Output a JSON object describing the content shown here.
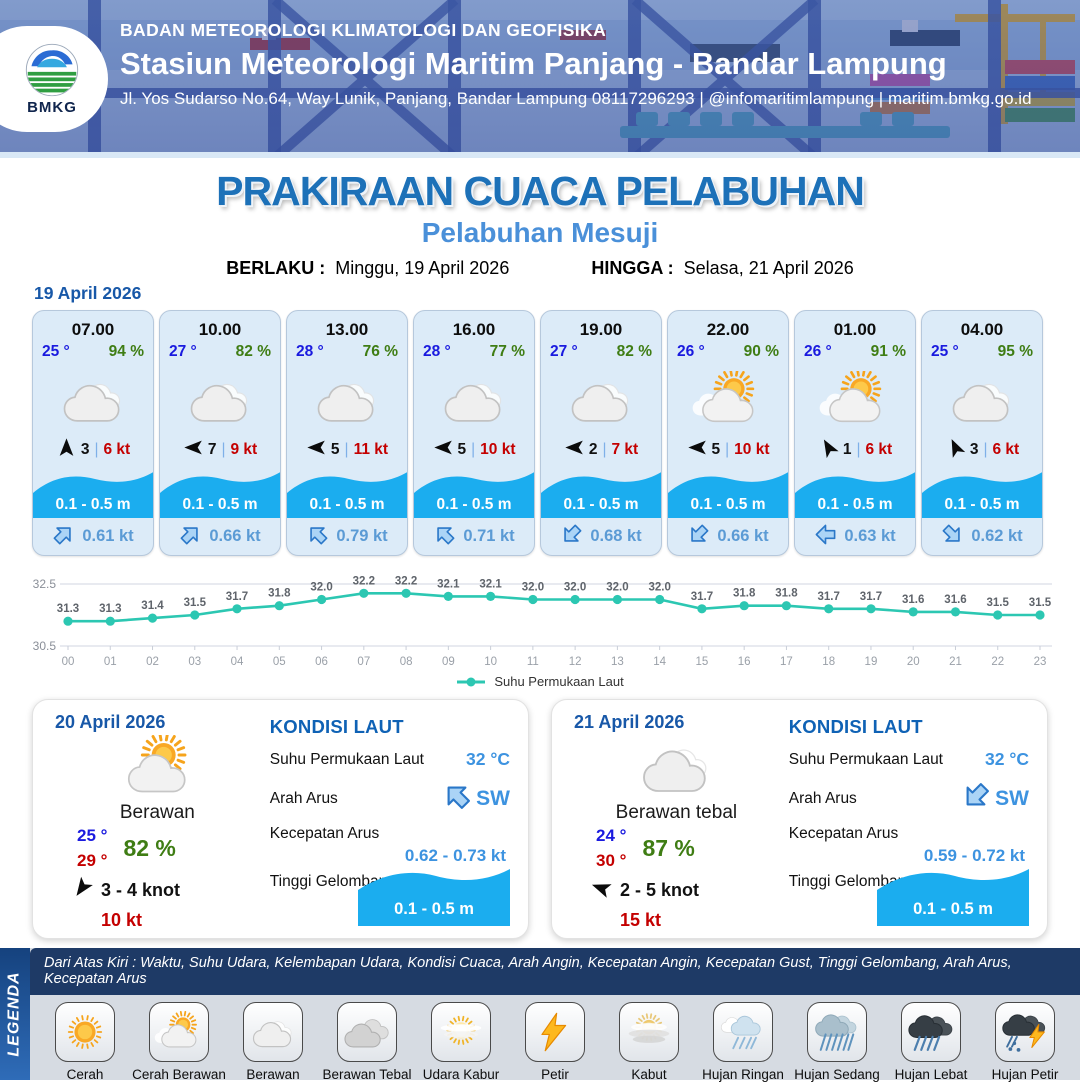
{
  "header": {
    "logo_text": "BMKG",
    "org": "BADAN METEOROLOGI KLIMATOLOGI DAN GEOFISIKA",
    "station": "Stasiun Meteorologi Maritim Panjang - Bandar Lampung",
    "address": "Jl. Yos Sudarso No.64, Way Lunik, Panjang, Bandar Lampung 08117296293 | @infomaritimlampung | maritim.bmkg.go.id"
  },
  "title": {
    "main": "PRAKIRAAN CUACA PELABUHAN",
    "sub": "Pelabuhan Mesuji",
    "berlaku_label": "BERLAKU :",
    "berlaku_value": "Minggu, 19 April 2026",
    "hingga_label": "HINGGA :",
    "hingga_value": "Selasa, 21 April 2026"
  },
  "forecast": {
    "date": "19 April 2026",
    "separator": "|",
    "cards": [
      {
        "time": "07.00",
        "temp": "25 °",
        "humidity": "94 %",
        "icon": "berawan",
        "wind_dir_deg": 0,
        "wind": "3",
        "gust": "6 kt",
        "wave": "0.1 - 0.5 m",
        "current_dir_deg": 45,
        "current": "0.61 kt"
      },
      {
        "time": "10.00",
        "temp": "27 °",
        "humidity": "82 %",
        "icon": "berawan",
        "wind_dir_deg": -90,
        "wind": "7",
        "gust": "9 kt",
        "wave": "0.1 - 0.5 m",
        "current_dir_deg": 45,
        "current": "0.66 kt"
      },
      {
        "time": "13.00",
        "temp": "28 °",
        "humidity": "76 %",
        "icon": "berawan",
        "wind_dir_deg": -90,
        "wind": "5",
        "gust": "11 kt",
        "wave": "0.1 - 0.5 m",
        "current_dir_deg": -45,
        "current": "0.79 kt"
      },
      {
        "time": "16.00",
        "temp": "28 °",
        "humidity": "77 %",
        "icon": "berawan",
        "wind_dir_deg": -90,
        "wind": "5",
        "gust": "10 kt",
        "wave": "0.1 - 0.5 m",
        "current_dir_deg": -45,
        "current": "0.71 kt"
      },
      {
        "time": "19.00",
        "temp": "27 °",
        "humidity": "82 %",
        "icon": "berawan",
        "wind_dir_deg": -90,
        "wind": "2",
        "gust": "7 kt",
        "wave": "0.1 - 0.5 m",
        "current_dir_deg": -135,
        "current": "0.68 kt"
      },
      {
        "time": "22.00",
        "temp": "26 °",
        "humidity": "90 %",
        "icon": "cerah-berawan",
        "wind_dir_deg": -90,
        "wind": "5",
        "gust": "10 kt",
        "wave": "0.1 - 0.5 m",
        "current_dir_deg": -135,
        "current": "0.66 kt"
      },
      {
        "time": "01.00",
        "temp": "26 °",
        "humidity": "91 %",
        "icon": "cerah-berawan",
        "wind_dir_deg": -30,
        "wind": "1",
        "gust": "6 kt",
        "wave": "0.1 - 0.5 m",
        "current_dir_deg": -90,
        "current": "0.63 kt"
      },
      {
        "time": "04.00",
        "temp": "25 °",
        "humidity": "95 %",
        "icon": "berawan",
        "wind_dir_deg": -25,
        "wind": "3",
        "gust": "6 kt",
        "wave": "0.1 - 0.5 m",
        "current_dir_deg": 135,
        "current": "0.62 kt"
      }
    ]
  },
  "chart_data": {
    "type": "line",
    "x": [
      "00",
      "01",
      "02",
      "03",
      "04",
      "05",
      "06",
      "07",
      "08",
      "09",
      "10",
      "11",
      "12",
      "13",
      "14",
      "15",
      "16",
      "17",
      "18",
      "19",
      "20",
      "21",
      "22",
      "23"
    ],
    "series": [
      {
        "name": "Suhu Permukaan Laut",
        "values": [
          31.3,
          31.3,
          31.4,
          31.5,
          31.7,
          31.8,
          32.0,
          32.2,
          32.2,
          32.1,
          32.1,
          32.0,
          32.0,
          32.0,
          32.0,
          31.7,
          31.8,
          31.8,
          31.7,
          31.7,
          31.6,
          31.6,
          31.5,
          31.5
        ]
      }
    ],
    "ylim": [
      30.5,
      32.5
    ],
    "yticks": [
      32.5,
      30.5
    ],
    "grid": true,
    "point_labels": true,
    "legend_position": "bottom",
    "legend_label": "Suhu Permukaan Laut",
    "color": "#2cc7b2"
  },
  "kondisi_labels": {
    "heading": "KONDISI LAUT",
    "sst": "Suhu Permukaan Laut",
    "arah": "Arah Arus",
    "kec": "Kecepatan Arus",
    "gel": "Tinggi Gelombang"
  },
  "day_cards": [
    {
      "date": "20 April 2026",
      "icon": "cerah-berawan",
      "condition": "Berawan",
      "temp_min": "25 °",
      "temp_max": "29 °",
      "humidity": "82 %",
      "wind_dir_deg": 215,
      "wind": "3 - 4 knot",
      "gust": "10 kt",
      "sea": {
        "sst": "32 °C",
        "arah": "SW",
        "arah_deg": -45,
        "kec": "0.62 - 0.73 kt",
        "gel": "0.1 - 0.5 m"
      }
    },
    {
      "date": "21 April 2026",
      "icon": "berawan",
      "condition": "Berawan tebal",
      "temp_min": "24 °",
      "temp_max": "30 °",
      "humidity": "87 %",
      "wind_dir_deg": -70,
      "wind": "2 - 5 knot",
      "gust": "15 kt",
      "sea": {
        "sst": "32 °C",
        "arah": "SW",
        "arah_deg": -135,
        "kec": "0.59 - 0.72 kt",
        "gel": "0.1 - 0.5 m"
      }
    }
  ],
  "legend": {
    "title": "LEGENDA",
    "description": "Dari Atas Kiri : Waktu, Suhu Udara, Kelembapan Udara, Kondisi Cuaca, Arah Angin, Kecepatan Angin, Kecepatan Gust, Tinggi Gelombang, Arah Arus, Kecepatan Arus",
    "items": [
      {
        "id": "cerah",
        "label": "Cerah"
      },
      {
        "id": "cerah-berawan",
        "label": "Cerah Berawan"
      },
      {
        "id": "berawan",
        "label": "Berawan"
      },
      {
        "id": "berawan-tebal",
        "label": "Berawan Tebal"
      },
      {
        "id": "udara-kabur",
        "label": "Udara Kabur"
      },
      {
        "id": "petir",
        "label": "Petir"
      },
      {
        "id": "kabut",
        "label": "Kabut"
      },
      {
        "id": "hujan-ringan",
        "label": "Hujan Ringan"
      },
      {
        "id": "hujan-sedang",
        "label": "Hujan Sedang"
      },
      {
        "id": "hujan-lebat",
        "label": "Hujan Lebat"
      },
      {
        "id": "hujan-petir",
        "label": "Hujan Petir"
      }
    ]
  },
  "colors": {
    "primary_blue": "#1d71b8",
    "subtitle_blue": "#4a90d9",
    "date_blue": "#1858a8",
    "temp_blue": "#1a1adf",
    "humidity_green": "#3f7d14",
    "speed_red": "#c40000",
    "wave_blue": "#1badef",
    "current_blue": "#5b9bd5",
    "chart_teal": "#2cc7b2"
  }
}
